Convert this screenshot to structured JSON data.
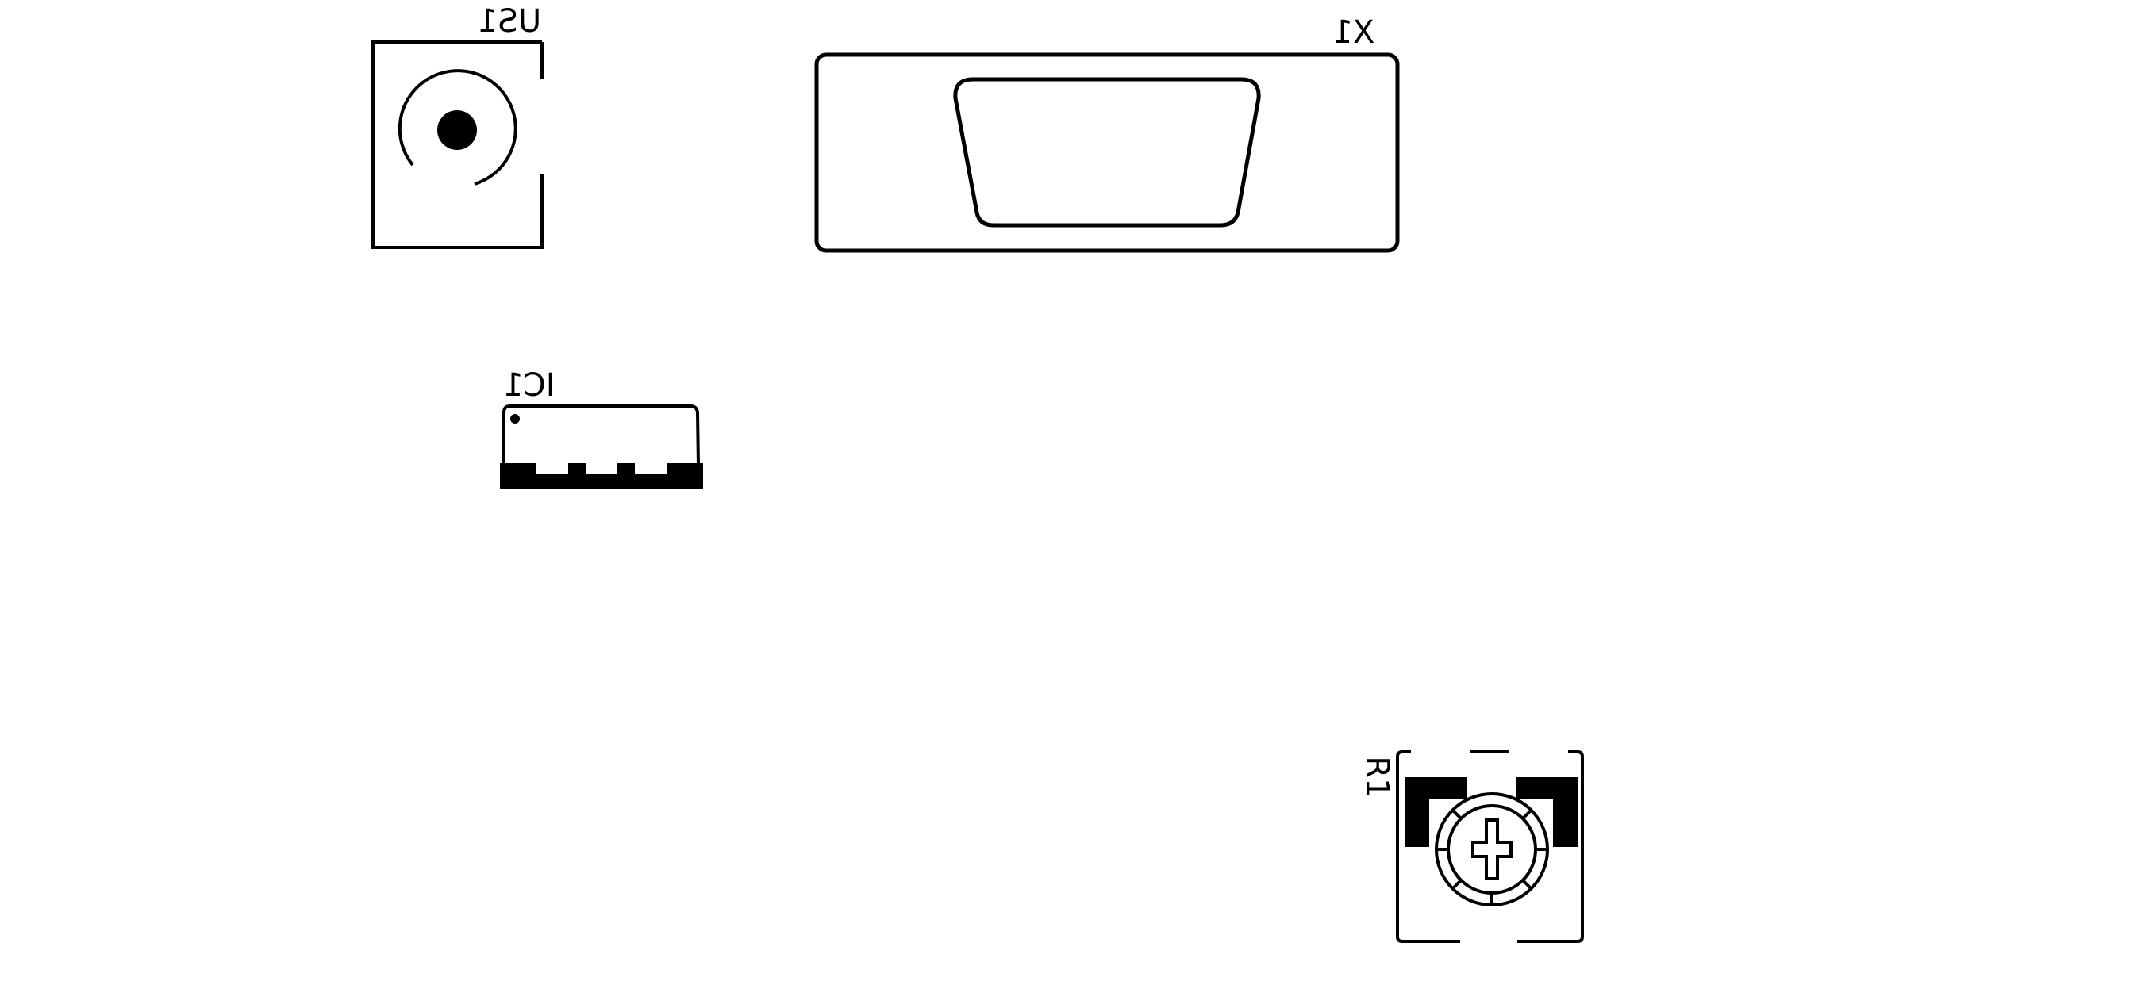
{
  "colors": {
    "background": "#ffffff",
    "ink": "#000000"
  },
  "components": {
    "us1": {
      "designator": "US1",
      "icon": "dc-power-jack-icon"
    },
    "x1": {
      "designator": "X1",
      "icon": "d-sub-connector-icon"
    },
    "ic1": {
      "designator": "IC1",
      "icon": "smd-ic-package-icon"
    },
    "r1": {
      "designator": "R1",
      "icon": "trimmer-potentiometer-icon"
    }
  }
}
